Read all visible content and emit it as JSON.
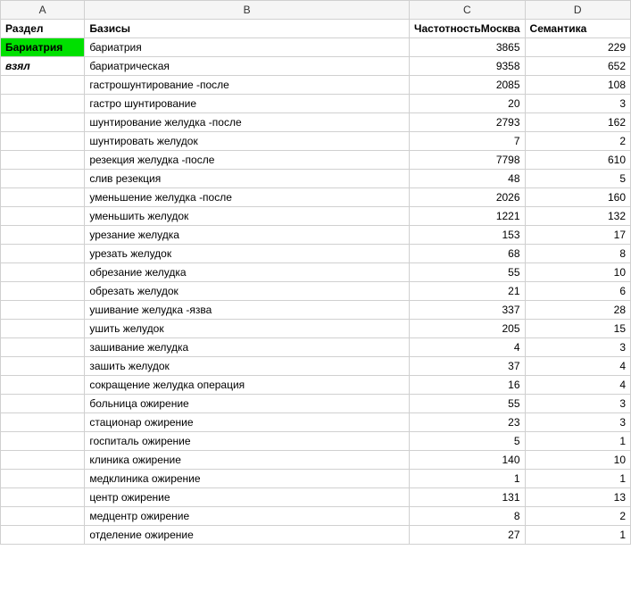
{
  "columns": {
    "A": "A",
    "B": "B",
    "C": "C",
    "D": "D"
  },
  "headers": {
    "razdel": "Раздел",
    "bazisy": "Базисы",
    "chastotnost": "ЧастотностьМосква",
    "semantika": "Семантика"
  },
  "cellA": {
    "bariatria": "Бариатрия",
    "vzyal": "взял"
  },
  "rows": [
    {
      "b": "бариатрия",
      "c": "3865",
      "d": "229"
    },
    {
      "b": "бариатрическая",
      "c": "9358",
      "d": "652"
    },
    {
      "b": "гастрошунтирование -после",
      "c": "2085",
      "d": "108"
    },
    {
      "b": "гастро шунтирование",
      "c": "20",
      "d": "3"
    },
    {
      "b": "шунтирование желудка -после",
      "c": "2793",
      "d": "162"
    },
    {
      "b": "шунтировать желудок",
      "c": "7",
      "d": "2"
    },
    {
      "b": "резекция желудка -после",
      "c": "7798",
      "d": "610"
    },
    {
      "b": "слив резекция",
      "c": "48",
      "d": "5"
    },
    {
      "b": "уменьшение желудка -после",
      "c": "2026",
      "d": "160"
    },
    {
      "b": "уменьшить желудок",
      "c": "1221",
      "d": "132"
    },
    {
      "b": "урезание желудка",
      "c": "153",
      "d": "17"
    },
    {
      "b": "урезать желудок",
      "c": "68",
      "d": "8"
    },
    {
      "b": "обрезание желудка",
      "c": "55",
      "d": "10"
    },
    {
      "b": "обрезать желудок",
      "c": "21",
      "d": "6"
    },
    {
      "b": "ушивание желудка -язва",
      "c": "337",
      "d": "28"
    },
    {
      "b": "ушить желудок",
      "c": "205",
      "d": "15"
    },
    {
      "b": "зашивание желудка",
      "c": "4",
      "d": "3"
    },
    {
      "b": "зашить желудок",
      "c": "37",
      "d": "4"
    },
    {
      "b": "сокращение желудка операция",
      "c": "16",
      "d": "4"
    },
    {
      "b": "больница ожирение",
      "c": "55",
      "d": "3"
    },
    {
      "b": "стационар ожирение",
      "c": "23",
      "d": "3"
    },
    {
      "b": "госпиталь ожирение",
      "c": "5",
      "d": "1"
    },
    {
      "b": "клиника ожирение",
      "c": "140",
      "d": "10"
    },
    {
      "b": "медклиника ожирение",
      "c": "1",
      "d": "1"
    },
    {
      "b": "центр ожирение",
      "c": "131",
      "d": "13"
    },
    {
      "b": "медцентр ожирение",
      "c": "8",
      "d": "2"
    },
    {
      "b": "отделение ожирение",
      "c": "27",
      "d": "1"
    }
  ],
  "style": {
    "highlight_bg": "#00E000",
    "border_color": "#d0d0d0",
    "header_bg": "#f5f5f5",
    "font_size": 12
  }
}
